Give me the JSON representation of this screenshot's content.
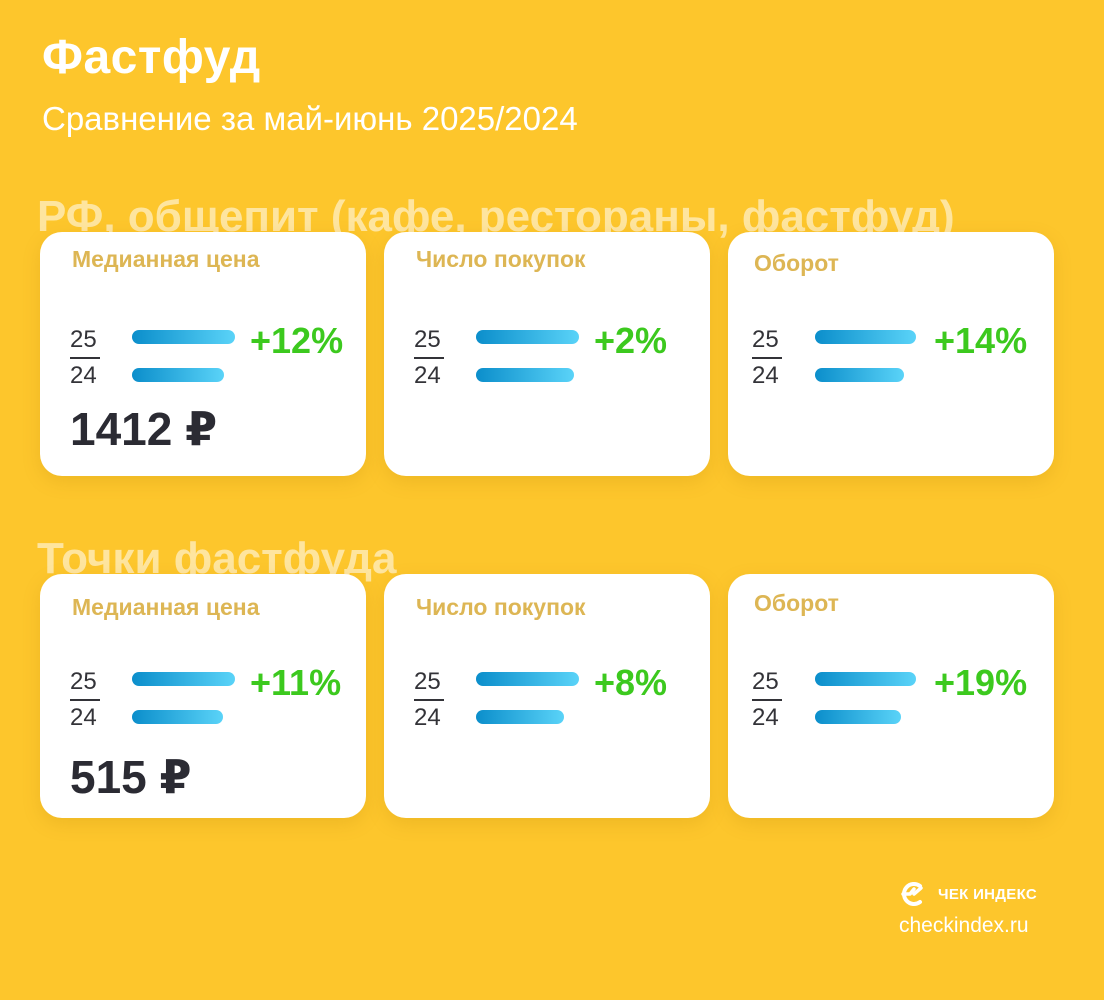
{
  "header": {
    "title": "Фастфуд",
    "subtitle": "Сравнение за май-июнь 2025/2024"
  },
  "sections": [
    {
      "title": "РФ, общепит (кафе, рестораны, фастфуд)",
      "cards": [
        {
          "label": "Медианная цена",
          "year_a": "25",
          "year_b": "24",
          "change": "+12%",
          "value": "1412 ₽",
          "bar_ratio": 0.893
        },
        {
          "label": "Число покупок",
          "year_a": "25",
          "year_b": "24",
          "change": "+2%",
          "bar_ratio": 0.98
        },
        {
          "label": "Оборот",
          "year_a": "25",
          "year_b": "24",
          "change": "+14%",
          "bar_ratio": 0.877
        }
      ]
    },
    {
      "title": "Точки фастфуда",
      "cards": [
        {
          "label": "Медианная цена",
          "year_a": "25",
          "year_b": "24",
          "change": "+11%",
          "value": "515 ₽",
          "bar_ratio": 0.9
        },
        {
          "label": "Число покупок",
          "year_a": "25",
          "year_b": "24",
          "change": "+8%",
          "bar_ratio": 0.926
        },
        {
          "label": "Оборот",
          "year_a": "25",
          "year_b": "24",
          "change": "+19%",
          "bar_ratio": 0.84
        }
      ]
    }
  ],
  "colors": {
    "background": "#FDC62C",
    "card_label": "#DDB654",
    "change_positive": "#3CC91E",
    "bar_start": "#0B8ECB",
    "bar_end": "#5AD3F8"
  },
  "footer": {
    "logo_icon": "checkindex-logo-icon",
    "logo_text": "ЧЕК ИНДЕКС",
    "site": "checkindex.ru"
  }
}
